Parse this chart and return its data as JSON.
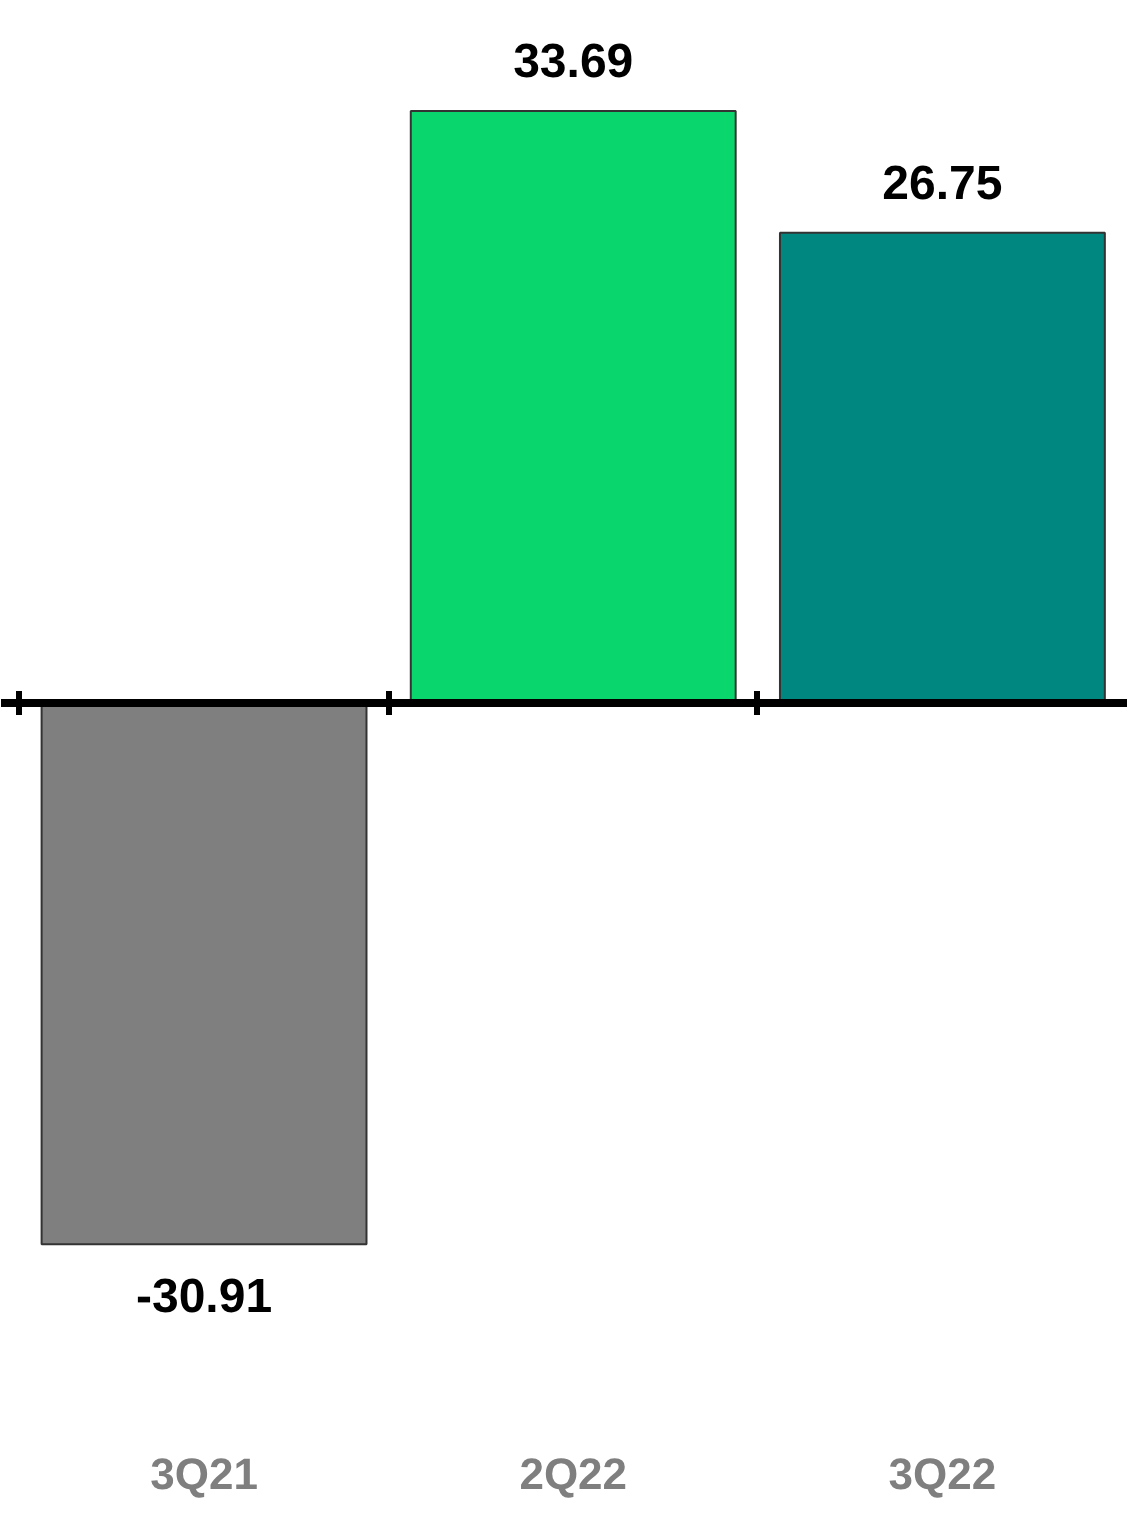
{
  "chart_data": {
    "type": "bar",
    "categories": [
      "3Q21",
      "2Q22",
      "3Q22"
    ],
    "values": [
      -30.91,
      33.69,
      26.75
    ],
    "colors": [
      "#7f7f7f",
      "#0ad66e",
      "#00877f"
    ],
    "data_labels": true
  }
}
